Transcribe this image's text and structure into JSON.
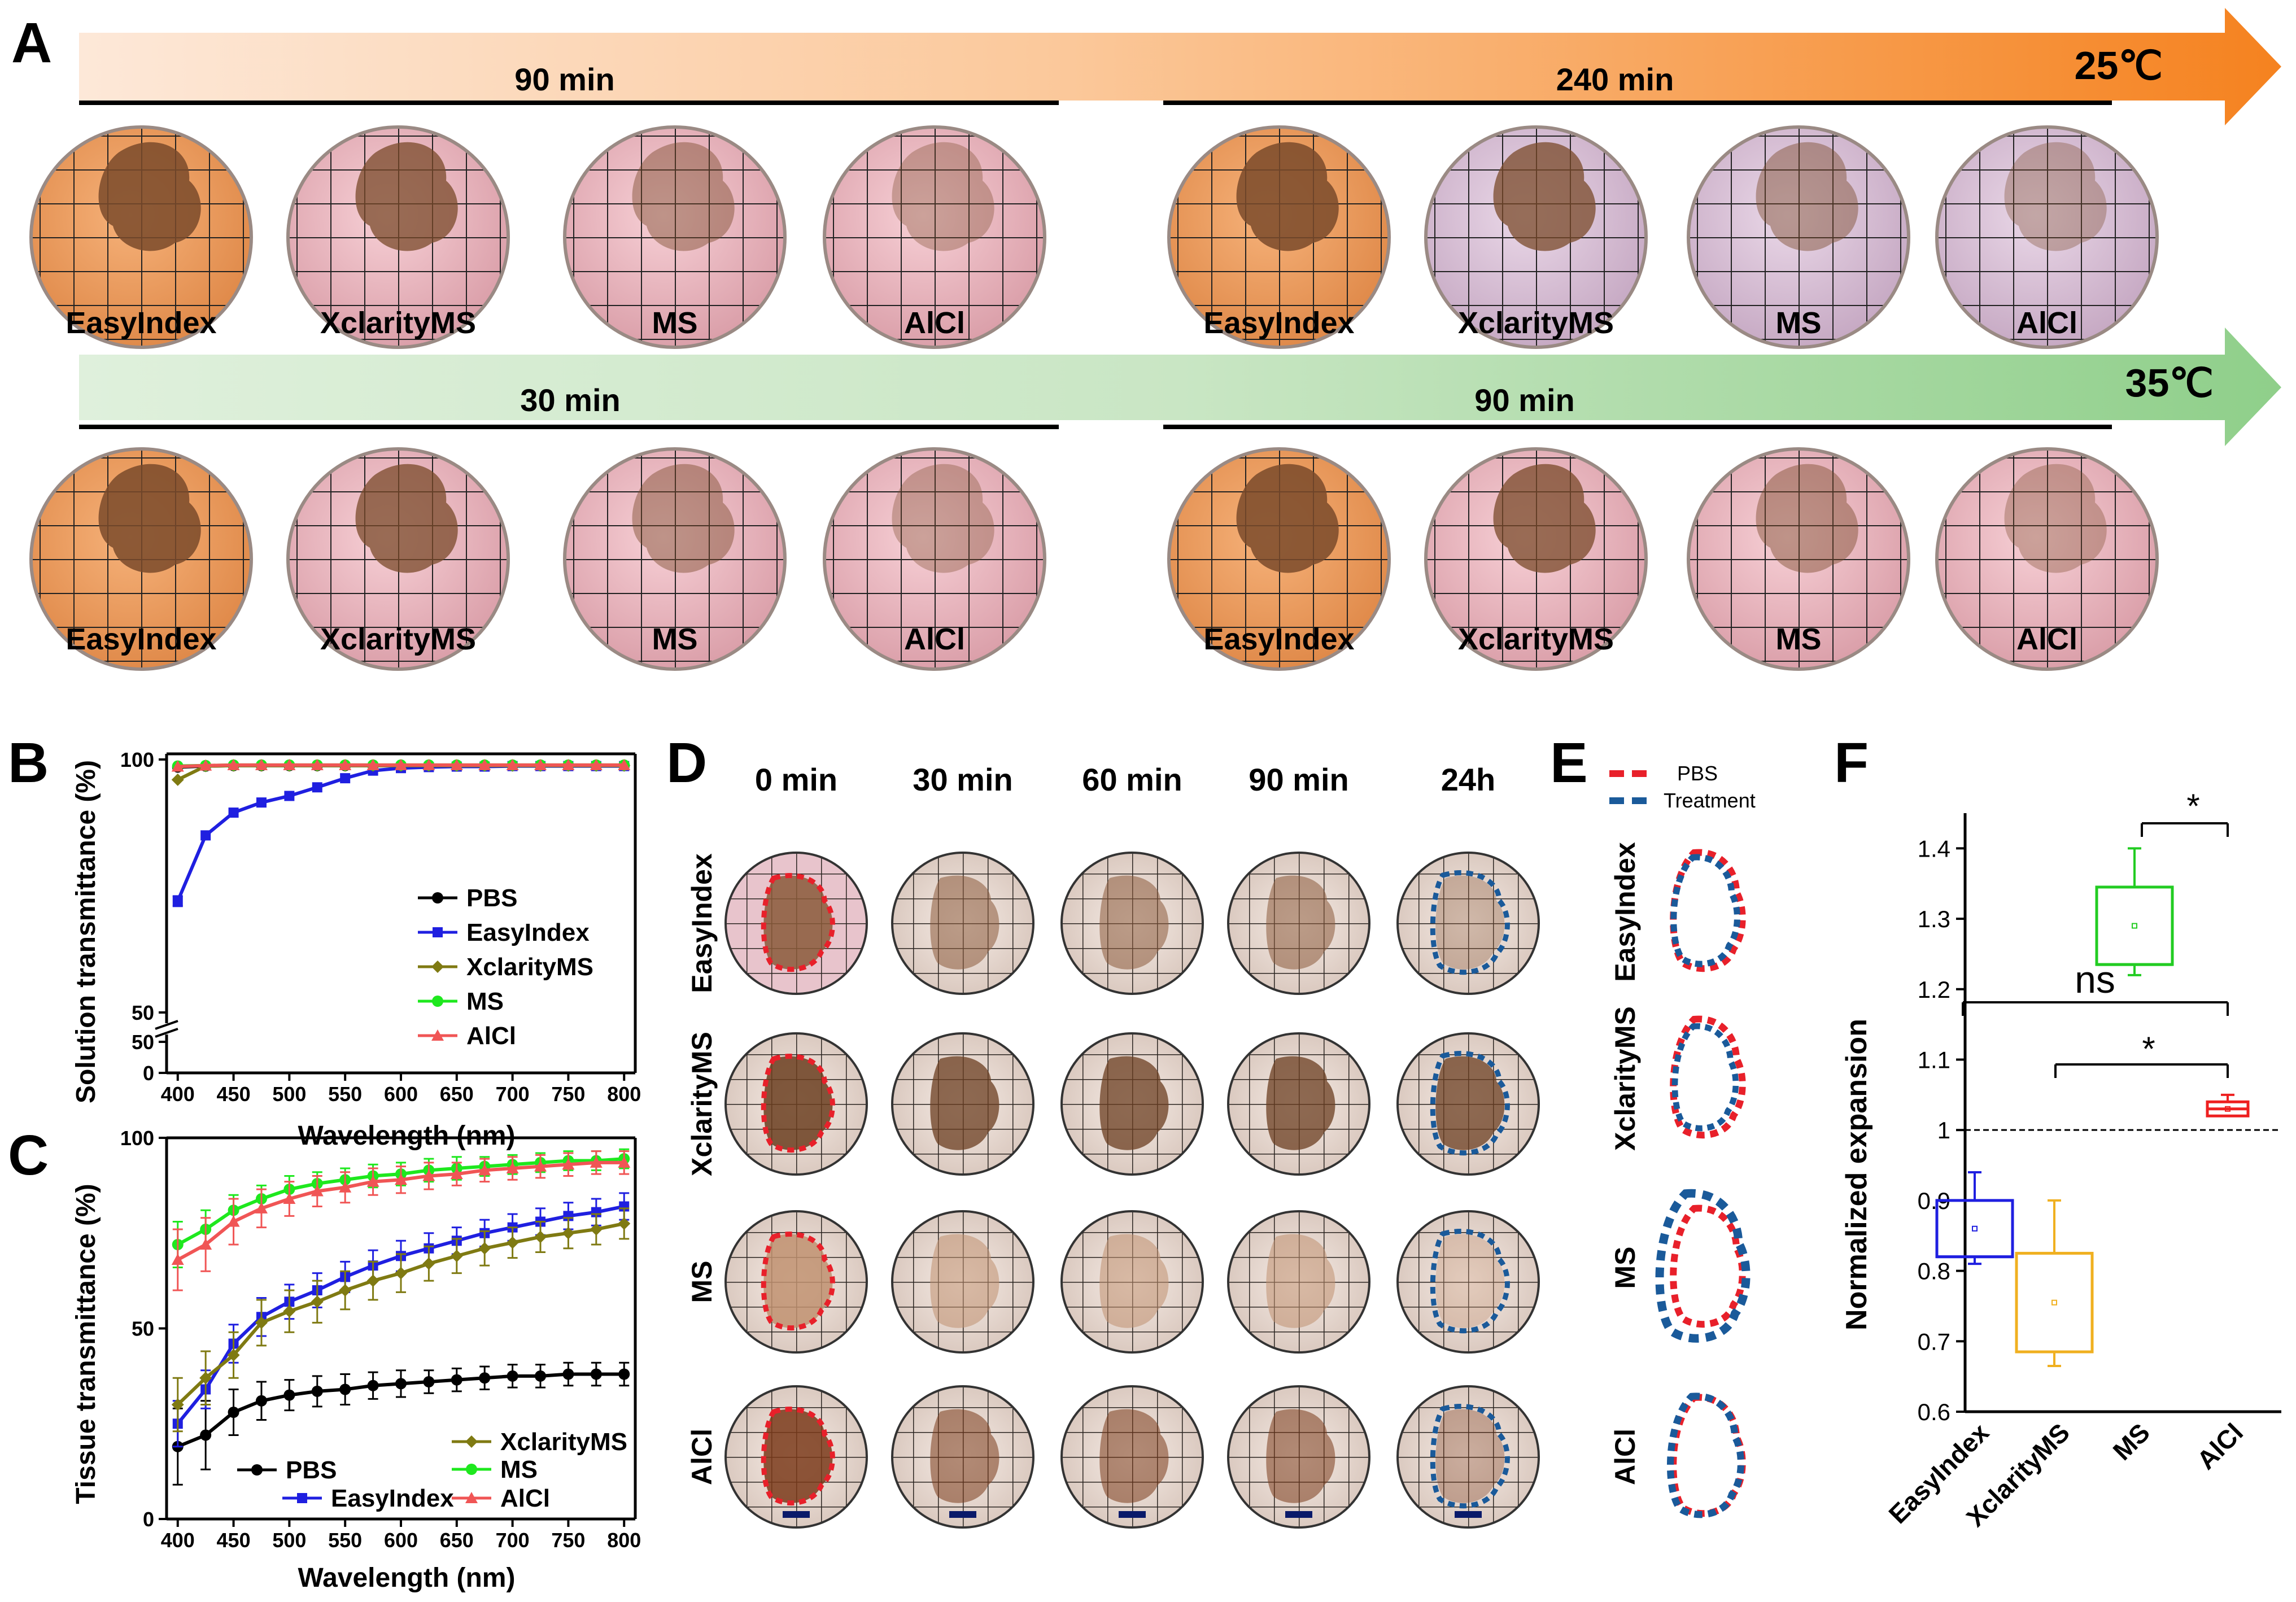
{
  "panel_letters": {
    "A": "A",
    "B": "B",
    "C": "C",
    "D": "D",
    "E": "E",
    "F": "F"
  },
  "colors": {
    "pbs": "#000000",
    "easyindex": "#1f1fe0",
    "xclarityms": "#7f7a12",
    "ms": "#1ee81e",
    "alcl": "#f05555",
    "arrow_25": "#f5821f",
    "arrow_35": "#8fcf8a",
    "easy_solution": "#f0a060",
    "xclarity_solution": "#e8aeb8",
    "ms_solution": "#ecbcc4",
    "alcl_solution": "#eab2ba",
    "tissue": "#7a4a2a",
    "dash_red": "#e8202a",
    "dash_blue": "#1a5a9a"
  },
  "panel_a": {
    "row1": {
      "temperature": "25℃",
      "groups": [
        {
          "time": "90 min",
          "labels": [
            "EasyIndex",
            "XclarityMS",
            "MS",
            "AlCl"
          ]
        },
        {
          "time": "240 min",
          "labels": [
            "EasyIndex",
            "XclarityMS",
            "MS",
            "AlCl"
          ]
        }
      ]
    },
    "row2": {
      "temperature": "35℃",
      "groups": [
        {
          "time": "30 min",
          "labels": [
            "EasyIndex",
            "XclarityMS",
            "MS",
            "AlCl"
          ]
        },
        {
          "time": "90 min",
          "labels": [
            "EasyIndex",
            "XclarityMS",
            "MS",
            "AlCl"
          ]
        }
      ]
    }
  },
  "panel_d": {
    "times": [
      "0 min",
      "30 min",
      "60 min",
      "90 min",
      "24h"
    ],
    "rows": [
      "EasyIndex",
      "XclarityMS",
      "MS",
      "AlCl"
    ]
  },
  "panel_e": {
    "legend": [
      "PBS",
      "Treatment"
    ],
    "rows": [
      "EasyIndex",
      "XclarityMS",
      "MS",
      "AlCl"
    ]
  },
  "chart_data": [
    {
      "id": "B",
      "type": "line",
      "xlabel": "Wavelength (nm)",
      "ylabel": "Solution transmittance (%)",
      "xlim": [
        390,
        810
      ],
      "xticks": [
        400,
        450,
        500,
        550,
        600,
        650,
        700,
        750,
        800
      ],
      "ytick_labels": [
        "0",
        "50",
        "50",
        "100"
      ],
      "legend": [
        "PBS",
        "EasyIndex",
        "XclarityMS",
        "MS",
        "AlCl"
      ],
      "x": [
        400,
        425,
        450,
        475,
        500,
        525,
        550,
        575,
        600,
        625,
        650,
        675,
        700,
        725,
        750,
        775,
        800
      ],
      "series": [
        {
          "name": "PBS",
          "values": [
            98.5,
            98.7,
            98.8,
            98.8,
            98.8,
            98.8,
            98.8,
            98.8,
            98.8,
            98.8,
            98.8,
            98.8,
            98.8,
            98.8,
            98.8,
            98.8,
            98.8
          ]
        },
        {
          "name": "EasyIndex",
          "values": [
            72,
            85,
            89.5,
            91.5,
            92.8,
            94.5,
            96.3,
            97.8,
            98.3,
            98.5,
            98.6,
            98.6,
            98.7,
            98.7,
            98.7,
            98.7,
            98.7
          ]
        },
        {
          "name": "XclarityMS",
          "values": [
            96,
            98.7,
            98.8,
            98.8,
            98.8,
            98.8,
            98.8,
            98.8,
            98.8,
            98.8,
            98.8,
            98.8,
            98.8,
            98.8,
            98.8,
            98.8,
            98.8
          ]
        },
        {
          "name": "MS",
          "values": [
            98.7,
            98.8,
            98.9,
            98.9,
            98.9,
            98.9,
            98.9,
            98.9,
            98.9,
            98.9,
            98.9,
            98.9,
            98.9,
            98.9,
            98.9,
            98.9,
            98.9
          ]
        },
        {
          "name": "AlCl",
          "values": [
            98.6,
            98.8,
            98.9,
            98.9,
            98.9,
            98.9,
            98.9,
            98.9,
            98.9,
            98.9,
            98.9,
            98.9,
            98.9,
            98.9,
            98.9,
            98.9,
            98.9
          ]
        }
      ]
    },
    {
      "id": "C",
      "type": "line",
      "xlabel": "Wavelength (nm)",
      "ylabel": "Tissue transmittance (%)",
      "xlim": [
        390,
        810
      ],
      "ylim": [
        0,
        100
      ],
      "xticks": [
        400,
        450,
        500,
        550,
        600,
        650,
        700,
        750,
        800
      ],
      "yticks": [
        0,
        50,
        100
      ],
      "legend": [
        "PBS",
        "EasyIndex",
        "XclarityMS",
        "MS",
        "AlCl"
      ],
      "x": [
        400,
        425,
        450,
        475,
        500,
        525,
        550,
        575,
        600,
        625,
        650,
        675,
        700,
        725,
        750,
        775,
        800
      ],
      "series": [
        {
          "name": "PBS",
          "values": [
            19,
            22,
            28,
            31,
            32.5,
            33.5,
            34,
            35,
            35.5,
            36,
            36.5,
            37,
            37.5,
            37.5,
            38,
            38,
            38
          ]
        },
        {
          "name": "EasyIndex",
          "values": [
            25,
            34,
            46,
            53,
            57,
            60,
            63.5,
            66.5,
            69,
            71,
            73,
            75,
            76.5,
            78,
            79.5,
            80.5,
            82
          ]
        },
        {
          "name": "XclarityMS",
          "values": [
            30,
            37,
            43,
            51.5,
            54.5,
            57,
            60,
            62.5,
            64.5,
            67,
            69,
            71,
            72.5,
            74,
            75,
            76,
            77.5
          ]
        },
        {
          "name": "MS",
          "values": [
            72,
            76,
            81,
            84,
            86.5,
            88,
            89,
            90,
            90.5,
            91.5,
            92,
            92.5,
            93,
            93.5,
            94,
            94,
            94.5
          ]
        },
        {
          "name": "AlCl",
          "values": [
            68,
            72,
            78,
            81.5,
            84,
            86,
            87,
            88.5,
            89,
            90,
            90.5,
            91.5,
            92,
            92.5,
            93,
            93.5,
            93.5
          ]
        }
      ]
    },
    {
      "id": "F",
      "type": "box",
      "ylabel": "Normalized expansion",
      "ylim": [
        0.6,
        1.45
      ],
      "yticks": [
        0.6,
        0.7,
        0.8,
        0.9,
        1.0,
        1.1,
        1.2,
        1.3,
        1.4
      ],
      "ytick_labels": [
        "0.6",
        "0.7",
        "0.8",
        "0.9",
        "1",
        "1.1",
        "1.2",
        "1.3",
        "1.4"
      ],
      "categories": [
        "EasyIndex",
        "XclarityMS",
        "MS",
        "AlCl"
      ],
      "boxes": [
        {
          "name": "EasyIndex",
          "min": 0.81,
          "q1": 0.82,
          "median": 0.82,
          "q3": 0.9,
          "max": 0.94,
          "mean": 0.86
        },
        {
          "name": "XclarityMS",
          "min": 0.665,
          "q1": 0.685,
          "median": 0.685,
          "q3": 0.825,
          "max": 0.9,
          "mean": 0.755
        },
        {
          "name": "MS",
          "min": 1.22,
          "q1": 1.235,
          "median": 1.235,
          "q3": 1.345,
          "max": 1.4,
          "mean": 1.29
        },
        {
          "name": "AlCl",
          "min": 1.02,
          "q1": 1.02,
          "median": 1.03,
          "q3": 1.04,
          "max": 1.05,
          "mean": 1.03
        }
      ],
      "reference_line": 1.0,
      "annotations": [
        "*",
        "ns",
        "*"
      ]
    }
  ]
}
